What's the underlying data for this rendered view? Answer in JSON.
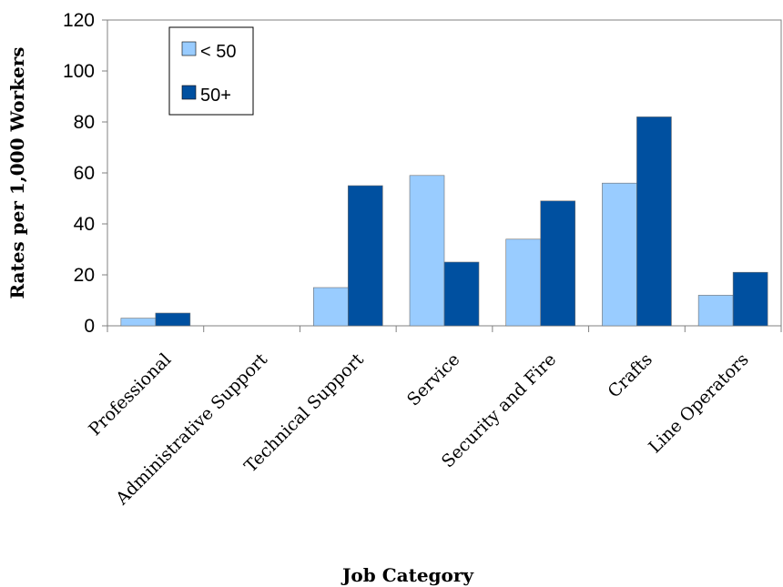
{
  "chart_data": {
    "type": "bar",
    "title": "",
    "xlabel": "Job Category",
    "ylabel": "Rates per 1,000 Workers",
    "ylim": [
      0,
      120
    ],
    "yticks": [
      0,
      20,
      40,
      60,
      80,
      100,
      120
    ],
    "grid": false,
    "legend_position": "top-left",
    "categories": [
      "Professional",
      "Administrative Support",
      "Technical Support",
      "Service",
      "Security and Fire",
      "Crafts",
      "Line Operators"
    ],
    "series": [
      {
        "name": "< 50",
        "color": "#99ccff",
        "values": [
          3,
          0,
          15,
          59,
          34,
          56,
          12
        ]
      },
      {
        "name": "50+",
        "color": "#0050a0",
        "values": [
          5,
          0,
          55,
          25,
          49,
          82,
          21
        ]
      }
    ]
  }
}
